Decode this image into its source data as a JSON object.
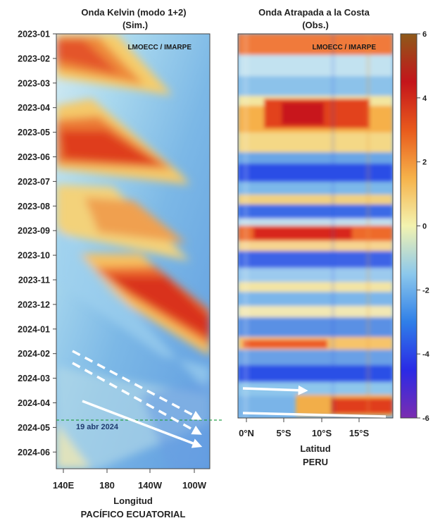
{
  "chart_data": [
    {
      "type": "heatmap",
      "title": "Onda Kelvin (modo 1+2)",
      "subtitle": "(Sim.)",
      "watermark": "LMOECC / IMARPE",
      "xlabel": "Longitud",
      "xlabel2": "PACÍFICO ECUATORIAL",
      "x_ticks": [
        "140E",
        "180",
        "140W",
        "100W"
      ],
      "y_ticks": [
        "2023-01",
        "2023-02",
        "2023-03",
        "2023-04",
        "2023-05",
        "2023-06",
        "2023-07",
        "2023-08",
        "2023-09",
        "2023-10",
        "2023-11",
        "2023-12",
        "2024-01",
        "2024-02",
        "2024-03",
        "2024-04",
        "2024-05",
        "2024-06"
      ],
      "annotation": "19 abr 2024",
      "reference_line_date": "2024-04-19",
      "propagation_arrows": 3
    },
    {
      "type": "heatmap",
      "title": "Onda Atrapada a la Costa",
      "subtitle": "(Obs.)",
      "watermark": "LMOECC / IMARPE",
      "xlabel": "Latitud",
      "xlabel2": "PERU",
      "x_ticks": [
        "0°N",
        "5°S",
        "10°S",
        "15°S"
      ],
      "propagation_arrows": 2
    }
  ],
  "colorbar": {
    "ticks": [
      6,
      4,
      2,
      0,
      -2,
      -4,
      -6
    ],
    "range": [
      -6,
      6
    ],
    "colors": [
      "#7b2db0",
      "#2a2ae6",
      "#2f7fe8",
      "#8cc8ec",
      "#f3f3b0",
      "#f6b24a",
      "#e85a1c",
      "#c4141b",
      "#8e5a1a"
    ]
  }
}
